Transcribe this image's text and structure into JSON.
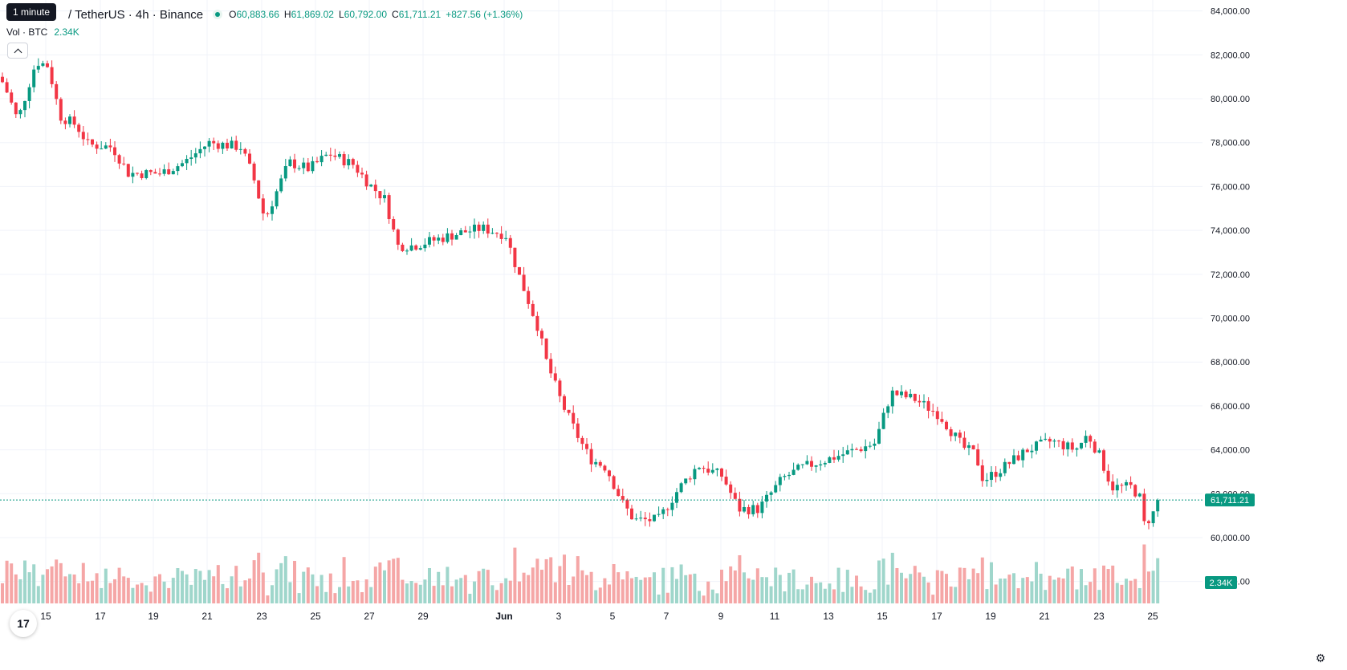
{
  "tooltip": "1 minute",
  "header": {
    "title": "/ TetherUS · 4h · Binance",
    "open_label": "O",
    "open": "60,883.66",
    "high_label": "H",
    "high": "61,869.02",
    "low_label": "L",
    "low": "60,792.00",
    "close_label": "C",
    "close": "61,711.21",
    "change": "+827.56 (+1.36%)"
  },
  "volume": {
    "label": "Vol · BTC",
    "value": "2.34K"
  },
  "colors": {
    "up": "#089981",
    "down": "#f23645",
    "up_vol": "#9fd6cb",
    "down_vol": "#f5a6a6",
    "grid": "#f0f3fa"
  },
  "icons": {
    "collapse": "chevron-up-icon",
    "logo": "tradingview-logo-icon",
    "settings": "settings-icon"
  },
  "chart_data": {
    "type": "candlestick",
    "y_ticks": [
      "84,000.00",
      "82,000.00",
      "80,000.00",
      "78,000.00",
      "76,000.00",
      "74,000.00",
      "72,000.00",
      "70,000.00",
      "68,000.00",
      "66,000.00",
      "64,000.00",
      "62,000.00",
      "60,000.00",
      "58,000.00"
    ],
    "y_tick_values": [
      84000,
      82000,
      80000,
      78000,
      76000,
      74000,
      72000,
      70000,
      68000,
      66000,
      64000,
      62000,
      60000,
      58000
    ],
    "ylim": [
      57000,
      84500
    ],
    "x_labels": [
      "15",
      "17",
      "19",
      "21",
      "23",
      "25",
      "27",
      "29",
      "Jun",
      "3",
      "5",
      "7",
      "9",
      "11",
      "13",
      "15",
      "17",
      "19",
      "21",
      "23",
      "25"
    ],
    "x_label_positions": [
      57,
      125,
      191,
      258,
      326,
      393,
      460,
      527,
      628,
      696,
      763,
      830,
      898,
      965,
      1032,
      1099,
      1167,
      1234,
      1301,
      1369,
      1436
    ],
    "last_price": "61,711.21",
    "last_price_value": 61711,
    "last_volume": "2.34K",
    "anchors": [
      [
        0,
        81000
      ],
      [
        10,
        80200
      ],
      [
        22,
        79000
      ],
      [
        45,
        81700
      ],
      [
        60,
        81500
      ],
      [
        75,
        79200
      ],
      [
        95,
        78800
      ],
      [
        110,
        77900
      ],
      [
        140,
        77800
      ],
      [
        160,
        76600
      ],
      [
        200,
        76600
      ],
      [
        230,
        77100
      ],
      [
        260,
        78000
      ],
      [
        300,
        77800
      ],
      [
        315,
        76500
      ],
      [
        330,
        74500
      ],
      [
        345,
        75800
      ],
      [
        360,
        77100
      ],
      [
        385,
        76800
      ],
      [
        410,
        77500
      ],
      [
        440,
        77000
      ],
      [
        460,
        76100
      ],
      [
        480,
        75400
      ],
      [
        495,
        73300
      ],
      [
        515,
        73300
      ],
      [
        545,
        73600
      ],
      [
        575,
        73900
      ],
      [
        600,
        74100
      ],
      [
        630,
        73800
      ],
      [
        645,
        72100
      ],
      [
        670,
        69600
      ],
      [
        680,
        68100
      ],
      [
        700,
        66100
      ],
      [
        720,
        64600
      ],
      [
        735,
        63600
      ],
      [
        755,
        63200
      ],
      [
        775,
        61600
      ],
      [
        790,
        60800
      ],
      [
        820,
        60800
      ],
      [
        845,
        62200
      ],
      [
        870,
        63300
      ],
      [
        900,
        62800
      ],
      [
        920,
        61300
      ],
      [
        945,
        61300
      ],
      [
        975,
        62700
      ],
      [
        1000,
        63200
      ],
      [
        1050,
        63800
      ],
      [
        1090,
        64300
      ],
      [
        1110,
        66600
      ],
      [
        1140,
        66300
      ],
      [
        1170,
        65600
      ],
      [
        1200,
        64100
      ],
      [
        1215,
        63800
      ],
      [
        1225,
        62600
      ],
      [
        1250,
        63200
      ],
      [
        1280,
        64000
      ],
      [
        1310,
        64400
      ],
      [
        1340,
        64000
      ],
      [
        1355,
        64700
      ],
      [
        1370,
        63700
      ],
      [
        1385,
        62300
      ],
      [
        1410,
        62300
      ],
      [
        1420,
        61800
      ],
      [
        1425,
        60600
      ],
      [
        1435,
        61000
      ],
      [
        1445,
        61711
      ]
    ]
  }
}
